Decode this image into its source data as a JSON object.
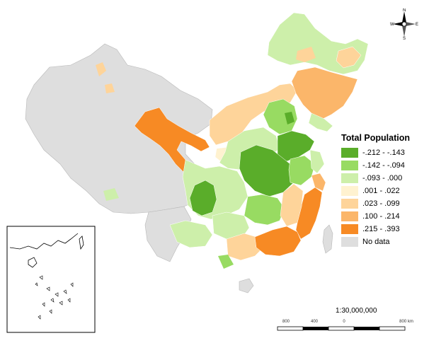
{
  "legend": {
    "title": "Total Population",
    "items": [
      {
        "label": "-.212 - -.143",
        "color": "#5aad2a"
      },
      {
        "label": "-.142 - -.094",
        "color": "#98db62"
      },
      {
        "label": "-.093 - .000",
        "color": "#cdefaa"
      },
      {
        "label": ".001 - .022",
        "color": "#fff2d0"
      },
      {
        "label": ".023 - .099",
        "color": "#fed49a"
      },
      {
        "label": ".100 - .214",
        "color": "#fbb66a"
      },
      {
        "label": ".215 - .393",
        "color": "#f78a24"
      },
      {
        "label": "No data",
        "color": "#dedede"
      }
    ]
  },
  "scale": {
    "ratio": "1:30,000,000",
    "ticks": [
      "800",
      "400",
      "0",
      "800 km"
    ]
  },
  "north_arrow": {
    "n": "N",
    "s": "S",
    "e": "E",
    "w": "W"
  },
  "colors": {
    "nodata": "#dedede",
    "border": "#b8b8b8",
    "outline": "#000000"
  }
}
